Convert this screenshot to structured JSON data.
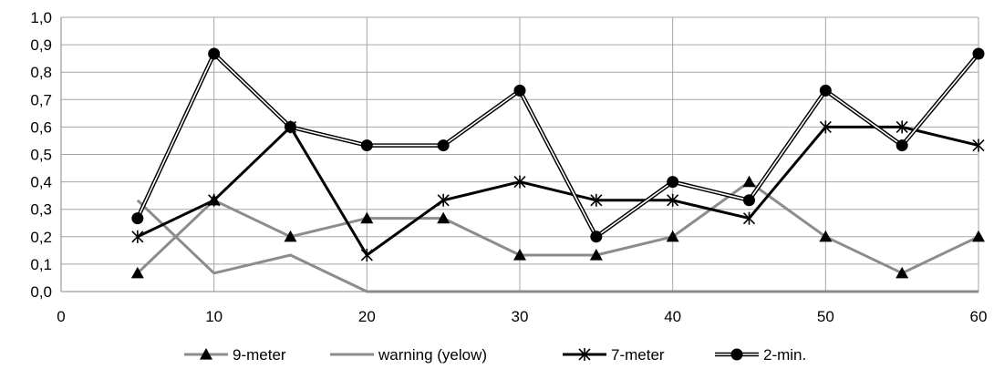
{
  "chart_data": {
    "type": "line",
    "xlim": [
      0,
      60
    ],
    "ylim": [
      0,
      1
    ],
    "x_ticks": [
      "0",
      "10",
      "20",
      "30",
      "40",
      "50",
      "60"
    ],
    "y_ticks": [
      "0,0",
      "0,1",
      "0,2",
      "0,3",
      "0,4",
      "0,5",
      "0,6",
      "0,7",
      "0,8",
      "0,9",
      "1,0"
    ],
    "grid": true,
    "legend_position": "bottom",
    "series": [
      {
        "name": "9-meter",
        "style": "triangle",
        "color": "#8c8c8c",
        "x": [
          5,
          10,
          15,
          20,
          25,
          30,
          35,
          40,
          45,
          50,
          55,
          60
        ],
        "y": [
          0.067,
          0.333,
          0.2,
          0.267,
          0.267,
          0.133,
          0.133,
          0.2,
          0.4,
          0.2,
          0.067,
          0.2
        ]
      },
      {
        "name": "warning (yelow)",
        "style": "plain",
        "color": "#8c8c8c",
        "x": [
          5,
          10,
          15,
          20,
          25,
          30,
          35,
          40,
          45,
          50,
          55,
          60
        ],
        "y": [
          0.333,
          0.067,
          0.133,
          0.0,
          0.0,
          0.0,
          0.0,
          0.0,
          0.0,
          0.0,
          0.0,
          0.0
        ]
      },
      {
        "name": "7-meter",
        "style": "star",
        "color": "#000000",
        "x": [
          5,
          10,
          15,
          20,
          25,
          30,
          35,
          40,
          45,
          50,
          55,
          60
        ],
        "y": [
          0.2,
          0.333,
          0.6,
          0.133,
          0.333,
          0.4,
          0.333,
          0.333,
          0.267,
          0.6,
          0.6,
          0.533
        ]
      },
      {
        "name": "2-min.",
        "style": "double-circle",
        "color": "#000000",
        "x": [
          5,
          10,
          15,
          20,
          25,
          30,
          35,
          40,
          45,
          50,
          55,
          60
        ],
        "y": [
          0.267,
          0.867,
          0.6,
          0.533,
          0.533,
          0.733,
          0.2,
          0.4,
          0.333,
          0.733,
          0.533,
          0.867
        ]
      }
    ]
  }
}
